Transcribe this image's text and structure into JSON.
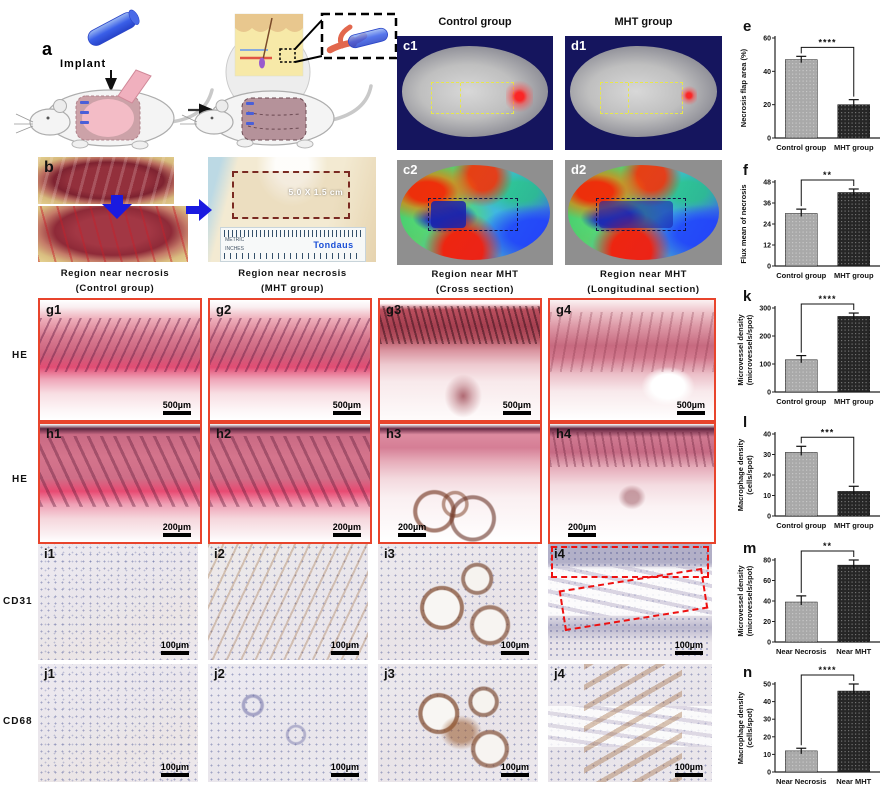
{
  "colors": {
    "bar_light": "#a9a9a9",
    "bar_dark": "#262626",
    "panel_border_red": "#e8442c",
    "arrow_blue": "#1a1ae0",
    "laser_background_navy": "#15155e",
    "roi_dashed_yellow": "#e8e84a",
    "annotation_red": "#ee1111",
    "ruler_brand_blue": "#1a4fd6"
  },
  "panel_a": {
    "letter": "a",
    "implant_label": "Implant"
  },
  "panel_b": {
    "letter": "b",
    "size_label": "5.0 X 1.5 cm",
    "ruler_brand": "Tondaus",
    "ruler_metric_label": "METRIC",
    "ruler_inches_label": "INCHES",
    "caption_left": {
      "line1": "Region near necrosis",
      "line2": "(Control group)"
    },
    "caption_right": {
      "line1": "Region near necrosis",
      "line2": "(MHT group)"
    }
  },
  "laser_panels": {
    "header_left": "Control group",
    "header_right": "MHT group",
    "c1": {
      "letter": "c1"
    },
    "d1": {
      "letter": "d1"
    },
    "c2": {
      "letter": "c2",
      "caption_line1": "Region near MHT",
      "caption_line2": "(Cross section)"
    },
    "d2": {
      "letter": "d2",
      "caption_line1": "Region near MHT",
      "caption_line2": "(Longitudinal section)"
    }
  },
  "histology": {
    "rows": [
      {
        "label": "HE",
        "scale_bar": "500µm",
        "panels": [
          {
            "letter": "g1"
          },
          {
            "letter": "g2"
          },
          {
            "letter": "g3"
          },
          {
            "letter": "g4"
          }
        ]
      },
      {
        "label": "HE",
        "scale_bar": "200µm",
        "panels": [
          {
            "letter": "h1"
          },
          {
            "letter": "h2"
          },
          {
            "letter": "h3"
          },
          {
            "letter": "h4"
          }
        ]
      },
      {
        "label": "CD31",
        "scale_bar": "100µm",
        "panels": [
          {
            "letter": "i1"
          },
          {
            "letter": "i2"
          },
          {
            "letter": "i3"
          },
          {
            "letter": "i4"
          }
        ]
      },
      {
        "label": "CD68",
        "scale_bar": "100µm",
        "panels": [
          {
            "letter": "j1"
          },
          {
            "letter": "j2"
          },
          {
            "letter": "j3"
          },
          {
            "letter": "j4"
          }
        ]
      }
    ]
  },
  "chart_data": [
    {
      "id": "e",
      "type": "bar",
      "letter": "e",
      "ylabel_lines": [
        "Necrosis flap area (%)"
      ],
      "categories": [
        "Control group",
        "MHT group"
      ],
      "values": [
        47,
        20
      ],
      "errors": [
        2,
        3
      ],
      "yticks": [
        0,
        20,
        40,
        60
      ],
      "ylim": [
        0,
        60
      ],
      "significance": "****",
      "bar_colors": [
        "#a9a9a9",
        "#262626"
      ]
    },
    {
      "id": "f",
      "type": "bar",
      "letter": "f",
      "ylabel_lines": [
        "Flux mean of necrosis"
      ],
      "categories": [
        "Control group",
        "MHT group"
      ],
      "values": [
        30,
        42
      ],
      "errors": [
        2.5,
        2
      ],
      "yticks": [
        0,
        12,
        24,
        36,
        48
      ],
      "ylim": [
        0,
        48
      ],
      "significance": "**",
      "bar_colors": [
        "#a9a9a9",
        "#262626"
      ]
    },
    {
      "id": "k",
      "type": "bar",
      "letter": "k",
      "ylabel_lines": [
        "Microvessel density",
        "(microvessels/spot)"
      ],
      "categories": [
        "Control group",
        "MHT group"
      ],
      "values": [
        115,
        270
      ],
      "errors": [
        15,
        12
      ],
      "yticks": [
        0,
        100,
        200,
        300
      ],
      "ylim": [
        0,
        300
      ],
      "significance": "****",
      "bar_colors": [
        "#a9a9a9",
        "#262626"
      ]
    },
    {
      "id": "l",
      "type": "bar",
      "letter": "l",
      "ylabel_lines": [
        "Macrophage density",
        "(cells/spot)"
      ],
      "categories": [
        "Control group",
        "MHT group"
      ],
      "values": [
        31,
        12
      ],
      "errors": [
        3,
        2.5
      ],
      "yticks": [
        0,
        10,
        20,
        30,
        40
      ],
      "ylim": [
        0,
        40
      ],
      "significance": "***",
      "bar_colors": [
        "#a9a9a9",
        "#262626"
      ]
    },
    {
      "id": "m",
      "type": "bar",
      "letter": "m",
      "ylabel_lines": [
        "Microvessel density",
        "(microvessels/spot)"
      ],
      "categories": [
        "Near Necrosis",
        "Near MHT"
      ],
      "values": [
        39,
        75
      ],
      "errors": [
        6,
        5
      ],
      "yticks": [
        0,
        20,
        40,
        60,
        80
      ],
      "ylim": [
        0,
        80
      ],
      "significance": "**",
      "bar_colors": [
        "#a9a9a9",
        "#262626"
      ]
    },
    {
      "id": "n",
      "type": "bar",
      "letter": "n",
      "ylabel_lines": [
        "Macrophage density",
        "(cells/spot)"
      ],
      "categories": [
        "Near Necrosis",
        "Near MHT"
      ],
      "values": [
        12,
        46
      ],
      "errors": [
        1.5,
        4
      ],
      "yticks": [
        0,
        10,
        20,
        30,
        40,
        50
      ],
      "ylim": [
        0,
        50
      ],
      "significance": "****",
      "bar_colors": [
        "#a9a9a9",
        "#262626"
      ]
    }
  ]
}
